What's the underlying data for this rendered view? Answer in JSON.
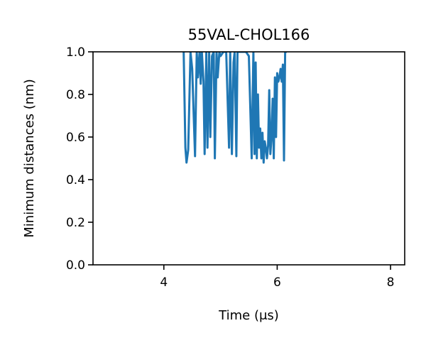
{
  "chart_data": {
    "type": "line",
    "title": "55VAL-CHOL166",
    "xlabel": "Time (μs)",
    "ylabel": "Minimum distances (nm)",
    "xlim": [
      2.75,
      8.25
    ],
    "ylim": [
      0.0,
      1.0
    ],
    "xticks": [
      4,
      6,
      8
    ],
    "xtick_labels": [
      "4",
      "6",
      "8"
    ],
    "yticks": [
      0.0,
      0.2,
      0.4,
      0.6,
      0.8,
      1.0
    ],
    "ytick_labels": [
      "0.0",
      "0.2",
      "0.4",
      "0.6",
      "0.8",
      "1.0"
    ],
    "grid": false,
    "series_color": "#1f77b4",
    "series": [
      {
        "x": [
          4.35,
          4.38,
          4.4,
          4.43,
          4.47,
          4.5,
          4.55,
          4.58,
          4.6,
          4.63,
          4.65,
          4.67,
          4.7,
          4.72,
          4.75,
          4.77,
          4.8,
          4.82,
          4.85,
          4.88,
          4.9,
          4.93,
          4.95,
          4.98,
          5.0,
          5.05,
          5.1,
          5.15,
          5.17,
          5.2,
          5.23,
          5.25,
          5.28,
          5.3,
          5.35,
          5.45,
          5.5,
          5.55,
          5.58,
          5.6,
          5.62,
          5.64,
          5.66,
          5.68,
          5.7,
          5.72,
          5.74,
          5.76,
          5.78,
          5.8,
          5.82,
          5.84,
          5.86,
          5.88,
          5.9,
          5.92,
          5.94,
          5.96,
          5.98,
          6.0,
          6.02,
          6.04,
          6.06,
          6.08,
          6.1,
          6.12,
          6.14,
          6.15
        ],
        "y": [
          1.0,
          0.55,
          0.48,
          0.54,
          1.0,
          0.92,
          0.51,
          1.0,
          0.88,
          1.0,
          0.85,
          1.0,
          0.86,
          0.52,
          1.0,
          0.55,
          1.0,
          0.6,
          0.98,
          1.0,
          0.5,
          1.0,
          0.88,
          1.0,
          0.98,
          1.0,
          1.0,
          0.55,
          1.0,
          0.52,
          0.95,
          1.0,
          0.51,
          1.0,
          1.0,
          1.0,
          0.98,
          0.5,
          1.0,
          0.52,
          0.95,
          0.5,
          0.8,
          0.55,
          0.64,
          0.5,
          0.62,
          0.48,
          0.58,
          0.55,
          0.5,
          0.56,
          0.82,
          0.52,
          0.6,
          0.78,
          0.5,
          0.88,
          0.6,
          0.9,
          0.86,
          0.88,
          0.92,
          0.86,
          0.94,
          0.49,
          1.0,
          1.0
        ]
      }
    ]
  }
}
